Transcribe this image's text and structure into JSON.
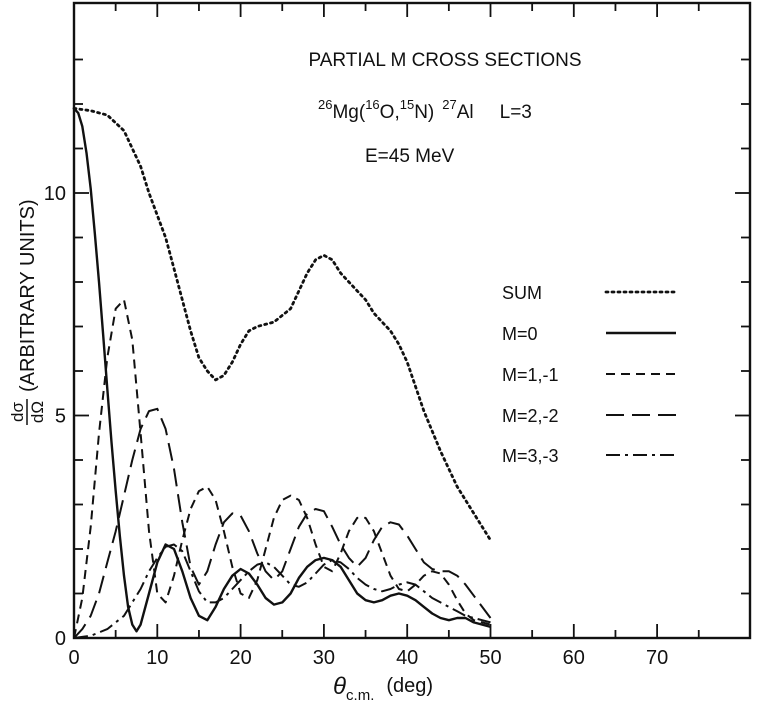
{
  "chart_data": {
    "type": "line",
    "title": "PARTIAL M CROSS SECTIONS",
    "reaction": {
      "target_mass": "26",
      "target": "Mg",
      "open_paren": "(",
      "proj_mass": "16",
      "proj": "O,",
      "eject_mass": "15",
      "eject": "N)",
      "resid_mass": "27",
      "resid": "Al",
      "L": "L=3"
    },
    "energy": "E=45 MeV",
    "xlabel": {
      "theta": "θ",
      "sub": "c.m.",
      "unit": "(deg)"
    },
    "ylabel": {
      "num": "dσ",
      "den": "dΩ",
      "text": "(ARBITRARY UNITS)"
    },
    "xlim": [
      0,
      75
    ],
    "ylim": [
      0,
      13.7
    ],
    "x_ticks": [
      0,
      10,
      20,
      30,
      40,
      50,
      60,
      70
    ],
    "x_tick_labels": [
      "0",
      "10",
      "20",
      "30",
      "40",
      "50",
      "60",
      "70"
    ],
    "x_minor_step": 5,
    "y_ticks": [
      0,
      5,
      10
    ],
    "y_tick_labels": [
      "0",
      "5",
      "10"
    ],
    "y_minor_step": 1,
    "grid": false,
    "legend_position": "right",
    "series": [
      {
        "name": "SUM",
        "style": "dotted",
        "x": [
          0,
          2,
          4,
          6,
          7,
          8,
          9,
          10,
          11,
          12,
          13,
          14,
          15,
          16,
          17,
          18,
          19,
          20,
          21,
          22,
          24,
          26,
          27,
          28,
          29,
          30,
          31,
          32,
          33,
          34,
          35,
          36,
          37,
          38,
          39,
          40,
          42,
          44,
          46,
          48,
          50
        ],
        "y": [
          11.9,
          11.85,
          11.75,
          11.4,
          11.0,
          10.6,
          10.0,
          9.5,
          9.0,
          8.3,
          7.6,
          6.9,
          6.3,
          6.0,
          5.8,
          5.9,
          6.2,
          6.6,
          6.9,
          7.0,
          7.1,
          7.4,
          7.8,
          8.2,
          8.5,
          8.6,
          8.5,
          8.2,
          8.0,
          7.8,
          7.6,
          7.3,
          7.1,
          6.9,
          6.6,
          6.2,
          5.1,
          4.2,
          3.4,
          2.8,
          2.2
        ]
      },
      {
        "name": "M=0",
        "style": "solid",
        "x": [
          0,
          0.5,
          1,
          1.5,
          2,
          2.5,
          3,
          3.5,
          4,
          4.5,
          5,
          5.5,
          6,
          6.5,
          7,
          7.5,
          8,
          9,
          10,
          11,
          12,
          13,
          14,
          15,
          16,
          17,
          18,
          19,
          20,
          21,
          22,
          23,
          24,
          25,
          26,
          27,
          28,
          29,
          30,
          31,
          32,
          33,
          34,
          35,
          36,
          37,
          38,
          39,
          40,
          41,
          42,
          43,
          44,
          45,
          46,
          47,
          48,
          49,
          50
        ],
        "y": [
          11.9,
          11.8,
          11.5,
          10.9,
          10.1,
          9.1,
          8.0,
          6.8,
          5.6,
          4.4,
          3.3,
          2.3,
          1.4,
          0.7,
          0.3,
          0.15,
          0.3,
          1.0,
          1.7,
          2.1,
          2.0,
          1.5,
          0.9,
          0.5,
          0.4,
          0.7,
          1.1,
          1.4,
          1.55,
          1.45,
          1.2,
          0.9,
          0.75,
          0.8,
          1.0,
          1.35,
          1.6,
          1.75,
          1.8,
          1.75,
          1.6,
          1.3,
          1.0,
          0.85,
          0.8,
          0.85,
          0.95,
          1.0,
          0.95,
          0.85,
          0.7,
          0.55,
          0.45,
          0.4,
          0.45,
          0.45,
          0.35,
          0.3,
          0.25
        ]
      },
      {
        "name": "M=1,-1",
        "style": "short-dash",
        "x": [
          0,
          1,
          2,
          3,
          4,
          5,
          6,
          7,
          8,
          9,
          10,
          11,
          12,
          13,
          14,
          15,
          16,
          17,
          18,
          19,
          20,
          21,
          22,
          23,
          24,
          25,
          26,
          27,
          28,
          29,
          30,
          31,
          32,
          33,
          34,
          35,
          36,
          37,
          38,
          39,
          40,
          41,
          42,
          43,
          44,
          45,
          46,
          47,
          48,
          49,
          50
        ],
        "y": [
          0,
          0.9,
          2.5,
          4.6,
          6.3,
          7.4,
          7.6,
          6.7,
          4.6,
          2.4,
          1.0,
          0.8,
          1.4,
          2.2,
          2.9,
          3.3,
          3.4,
          3.1,
          2.4,
          1.6,
          1.0,
          0.9,
          1.3,
          2.0,
          2.7,
          3.1,
          3.2,
          3.1,
          2.7,
          2.1,
          1.6,
          1.5,
          1.9,
          2.4,
          2.7,
          2.7,
          2.4,
          1.9,
          1.4,
          1.1,
          1.05,
          1.2,
          1.4,
          1.5,
          1.45,
          1.2,
          0.85,
          0.55,
          0.4,
          0.35,
          0.3
        ]
      },
      {
        "name": "M=2,-2",
        "style": "long-dash",
        "x": [
          0,
          1,
          2,
          3,
          4,
          5,
          6,
          7,
          8,
          9,
          10,
          11,
          12,
          13,
          14,
          15,
          16,
          17,
          18,
          19,
          20,
          21,
          22,
          23,
          24,
          25,
          26,
          27,
          28,
          29,
          30,
          31,
          32,
          33,
          34,
          35,
          36,
          37,
          38,
          39,
          40,
          41,
          42,
          43,
          44,
          45,
          46,
          47,
          48,
          49,
          50
        ],
        "y": [
          0,
          0.2,
          0.5,
          1.0,
          1.7,
          2.4,
          3.2,
          4.0,
          4.7,
          5.1,
          5.15,
          4.7,
          3.8,
          2.6,
          1.6,
          1.2,
          1.5,
          2.1,
          2.6,
          2.8,
          2.75,
          2.4,
          1.9,
          1.5,
          1.3,
          1.5,
          2.0,
          2.5,
          2.8,
          2.9,
          2.85,
          2.5,
          2.1,
          1.8,
          1.6,
          1.8,
          2.2,
          2.5,
          2.6,
          2.55,
          2.3,
          2.0,
          1.7,
          1.55,
          1.5,
          1.5,
          1.4,
          1.2,
          0.95,
          0.7,
          0.45
        ]
      },
      {
        "name": "M=3,-3",
        "style": "dash-dot",
        "x": [
          0,
          2,
          4,
          6,
          7,
          8,
          9,
          10,
          11,
          12,
          13,
          14,
          15,
          16,
          17,
          18,
          19,
          20,
          21,
          22,
          23,
          24,
          25,
          26,
          27,
          28,
          29,
          30,
          31,
          32,
          33,
          34,
          35,
          36,
          37,
          38,
          39,
          40,
          41,
          42,
          43,
          44,
          45,
          46,
          47,
          48,
          49,
          50
        ],
        "y": [
          0,
          0.05,
          0.2,
          0.5,
          0.8,
          1.1,
          1.5,
          1.8,
          2.05,
          2.1,
          1.95,
          1.5,
          1.05,
          0.8,
          0.8,
          0.9,
          1.1,
          1.3,
          1.5,
          1.65,
          1.7,
          1.6,
          1.4,
          1.2,
          1.15,
          1.25,
          1.45,
          1.65,
          1.75,
          1.7,
          1.55,
          1.35,
          1.2,
          1.1,
          1.05,
          1.1,
          1.2,
          1.25,
          1.2,
          1.05,
          0.9,
          0.8,
          0.7,
          0.6,
          0.5,
          0.45,
          0.4,
          0.35
        ]
      }
    ]
  }
}
